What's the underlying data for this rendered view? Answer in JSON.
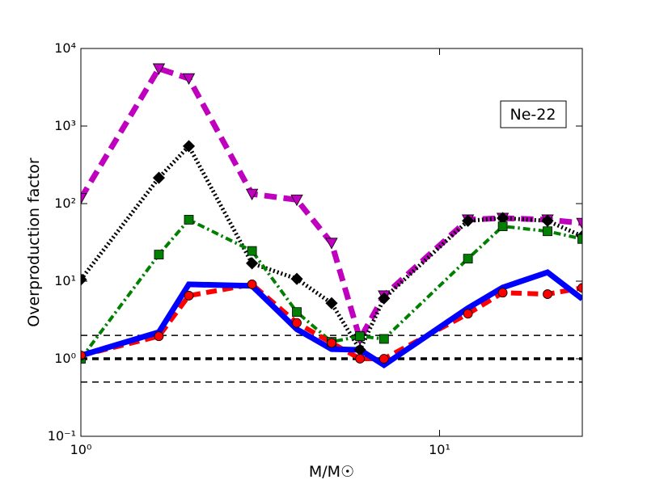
{
  "chart_data": {
    "type": "line",
    "ylabel": "Overproduction factor",
    "xlabel": "M/M☉",
    "annotation": "Ne-22",
    "xscale": "log",
    "yscale": "log",
    "xlim": [
      1,
      25
    ],
    "ylim": [
      0.1,
      10000
    ],
    "xticks": [
      {
        "value": 1,
        "label": "10⁰"
      },
      {
        "value": 10,
        "label": "10¹"
      }
    ],
    "yticks": [
      {
        "value": 0.1,
        "label": "10⁻¹"
      },
      {
        "value": 1,
        "label": "10⁰"
      },
      {
        "value": 10,
        "label": "10¹"
      },
      {
        "value": 100,
        "label": "10²"
      },
      {
        "value": 1000,
        "label": "10³"
      },
      {
        "value": 10000,
        "label": "10⁴"
      }
    ],
    "hlines": [
      2,
      1,
      0.5
    ],
    "hline_widths": [
      1.5,
      3.5,
      1.5
    ],
    "x": [
      1,
      1.65,
      2,
      3,
      4,
      5,
      6,
      7,
      12,
      15,
      20,
      25
    ],
    "series": [
      {
        "color": "#bf00bf",
        "linestyle": "dashed",
        "width": 7,
        "marker": "triangle-down",
        "values": [
          117,
          5500,
          4100,
          133,
          112,
          31,
          1.8,
          6.5,
          62,
          65,
          62,
          56
        ]
      },
      {
        "color": "#000000",
        "linestyle": "dotted",
        "width": 5,
        "marker": "diamond",
        "values": [
          10.5,
          215,
          550,
          17,
          10.7,
          5.2,
          1.3,
          6,
          60,
          65,
          60,
          38
        ]
      },
      {
        "color": "#007f00",
        "linestyle": "dashdot",
        "width": 4,
        "marker": "square",
        "values": [
          1.0,
          22,
          62,
          24.5,
          4.0,
          1.65,
          1.95,
          1.8,
          19.5,
          51,
          44,
          35
        ]
      },
      {
        "color": "#ff0000",
        "linestyle": "dashed",
        "width": 6,
        "marker": "circle",
        "values": [
          1.1,
          1.95,
          6.5,
          9.1,
          2.9,
          1.6,
          1.0,
          1.0,
          3.8,
          7.1,
          6.8,
          8.2
        ]
      },
      {
        "color": "#0000ff",
        "linestyle": "solid",
        "width": 7,
        "marker": "none",
        "values": [
          1.1,
          2.2,
          9.1,
          8.7,
          2.4,
          1.33,
          1.3,
          0.83,
          4.5,
          8.3,
          13,
          5.9
        ]
      }
    ]
  }
}
